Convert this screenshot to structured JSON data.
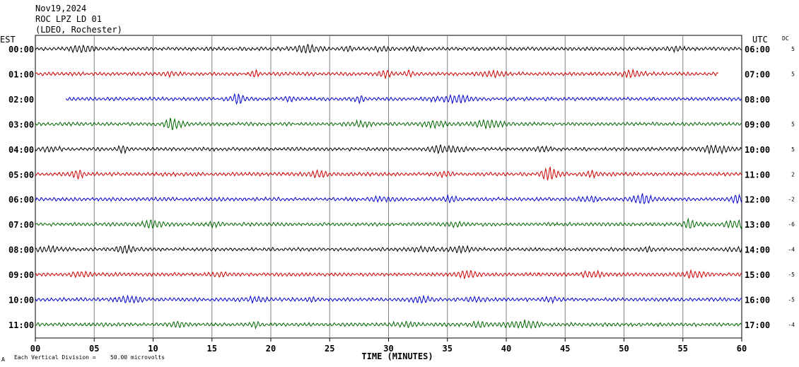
{
  "header": {
    "date": "Nov19,2024",
    "station": "ROC LPZ LD 01",
    "network": "(LDEO, Rochester)"
  },
  "left_tz": "EST",
  "right_tz": "UTC",
  "dc_label": "DC",
  "footer": {
    "x_title": "TIME (MINUTES)",
    "note_prefix": "Each Vertical Division =",
    "note_value": "50.00 microvolts",
    "corner_mark": "A"
  },
  "colors": {
    "black": "#000000",
    "red": "#cc0000",
    "blue": "#0000cc",
    "green": "#006600",
    "grid": "#808080"
  },
  "chart_data": {
    "type": "line",
    "description_type": "helicorder",
    "xlim": [
      0,
      60
    ],
    "x_ticks": [
      "00",
      "05",
      "10",
      "15",
      "20",
      "25",
      "30",
      "35",
      "40",
      "45",
      "50",
      "55",
      "60"
    ],
    "series": [
      {
        "left": "00:00",
        "right": "06:00",
        "dc": "5",
        "color": "black",
        "start": 0,
        "end": 60
      },
      {
        "left": "01:00",
        "right": "07:00",
        "dc": "5",
        "color": "red",
        "start": 0,
        "end": 58
      },
      {
        "left": "02:00",
        "right": "08:00",
        "dc": "",
        "color": "blue",
        "start": 2.6,
        "end": 60
      },
      {
        "left": "03:00",
        "right": "09:00",
        "dc": "5",
        "color": "green",
        "start": 0,
        "end": 60
      },
      {
        "left": "04:00",
        "right": "10:00",
        "dc": "5",
        "color": "black",
        "start": 0,
        "end": 60
      },
      {
        "left": "05:00",
        "right": "11:00",
        "dc": "2",
        "color": "red",
        "start": 0,
        "end": 60
      },
      {
        "left": "06:00",
        "right": "12:00",
        "dc": "-2",
        "color": "blue",
        "start": 0,
        "end": 60
      },
      {
        "left": "07:00",
        "right": "13:00",
        "dc": "-6",
        "color": "green",
        "start": 0,
        "end": 60
      },
      {
        "left": "08:00",
        "right": "14:00",
        "dc": "-4",
        "color": "black",
        "start": 0,
        "end": 60
      },
      {
        "left": "09:00",
        "right": "15:00",
        "dc": "-5",
        "color": "red",
        "start": 0,
        "end": 60
      },
      {
        "left": "10:00",
        "right": "16:00",
        "dc": "-5",
        "color": "blue",
        "start": 0,
        "end": 60
      },
      {
        "left": "11:00",
        "right": "17:00",
        "dc": "-4",
        "color": "green",
        "start": 0,
        "end": 60
      }
    ]
  }
}
